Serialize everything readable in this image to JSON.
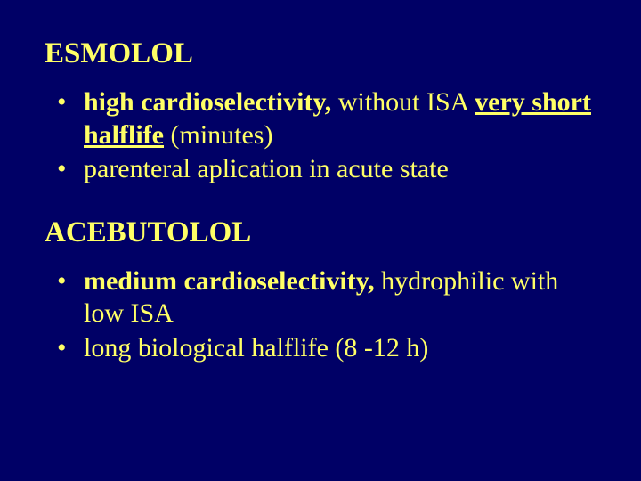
{
  "background_color": "#000066",
  "text_color": "#ffff66",
  "font_family": "Times New Roman",
  "sections": [
    {
      "heading": "ESMOLOL",
      "bullets": [
        {
          "spans": [
            {
              "text": "high cardioselectivity,",
              "bold": true,
              "underline": false
            },
            {
              "text": " without ISA  ",
              "bold": false,
              "underline": false
            },
            {
              "text": "very short halflife",
              "bold": true,
              "underline": true
            },
            {
              "text": " ",
              "bold": true,
              "underline": false
            },
            {
              "text": "(minutes)",
              "bold": false,
              "underline": false
            }
          ]
        },
        {
          "spans": [
            {
              "text": "parenteral aplication in acute state",
              "bold": false,
              "underline": false
            }
          ]
        }
      ]
    },
    {
      "heading": "ACEBUTOLOL",
      "bullets": [
        {
          "spans": [
            {
              "text": "medium cardioselectivity,",
              "bold": true,
              "underline": false
            },
            {
              "text": " hydrophilic with low ISA",
              "bold": false,
              "underline": false
            }
          ]
        },
        {
          "spans": [
            {
              "text": "long biological halflife (8 -12 h)",
              "bold": false,
              "underline": false
            }
          ]
        }
      ]
    }
  ]
}
